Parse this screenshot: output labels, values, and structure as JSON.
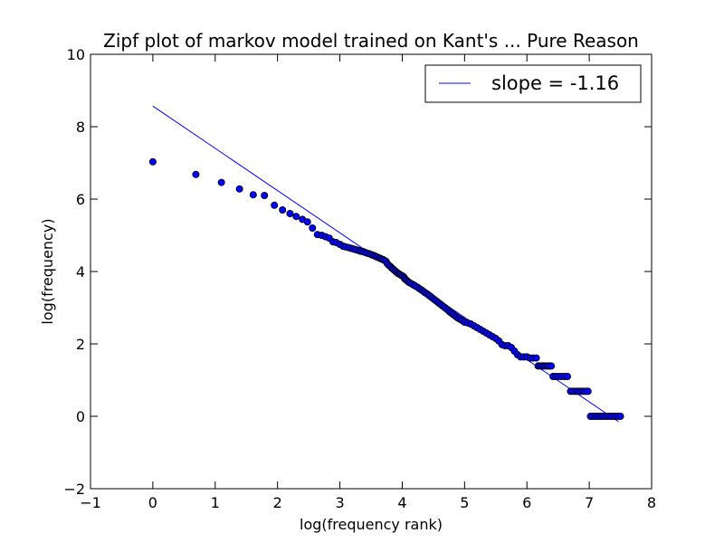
{
  "chart_data": {
    "type": "scatter",
    "title": "Zipf plot of markov model trained on Kant's ... Pure Reason",
    "xlabel": "log(frequency rank)",
    "ylabel": "log(frequency)",
    "xlim": [
      -1,
      8
    ],
    "ylim": [
      -2,
      10
    ],
    "xticks": [
      -1,
      0,
      1,
      2,
      3,
      4,
      5,
      6,
      7,
      8
    ],
    "yticks": [
      -2,
      0,
      2,
      4,
      6,
      8,
      10
    ],
    "xtick_labels": [
      "−1",
      "0",
      "1",
      "2",
      "3",
      "4",
      "5",
      "6",
      "7",
      "8"
    ],
    "ytick_labels": [
      "−2",
      "0",
      "2",
      "4",
      "6",
      "8",
      "10"
    ],
    "grid": false,
    "legend_position": "top-right",
    "series": [
      {
        "name": "slope = -1.16",
        "type": "line",
        "color": "#0000ff",
        "x": [
          0,
          7.47
        ],
        "y": [
          8.57,
          -0.15
        ]
      },
      {
        "type": "scatter",
        "color": "#0000ff",
        "x": [
          0.0,
          0.69,
          1.1,
          1.39,
          1.61,
          1.79,
          1.95,
          2.08,
          2.2,
          2.3,
          2.4,
          2.48,
          2.56,
          2.64,
          2.71,
          2.77,
          2.83,
          2.89,
          2.94,
          3.0,
          3.05,
          3.09,
          3.14,
          3.18,
          3.22,
          3.26,
          3.3,
          3.33,
          3.37,
          3.4,
          3.43,
          3.47,
          3.5,
          3.53,
          3.56,
          3.58,
          3.61,
          3.64,
          3.66,
          3.69,
          3.71,
          3.74,
          3.76,
          3.78,
          3.81,
          3.83,
          3.85,
          3.87,
          3.89,
          3.91,
          3.93,
          3.95,
          3.97,
          3.99,
          4.01,
          4.03,
          4.04,
          4.06,
          4.08,
          4.1,
          4.12,
          4.15,
          4.18,
          4.21,
          4.25,
          4.28,
          4.31,
          4.34,
          4.37,
          4.4,
          4.43,
          4.46,
          4.49,
          4.52,
          4.55,
          4.58,
          4.61,
          4.64,
          4.67,
          4.7,
          4.73,
          4.76,
          4.79,
          4.82,
          4.85,
          4.88,
          4.91,
          4.94,
          4.97,
          5.0,
          5.05,
          5.1,
          5.15,
          5.2,
          5.25,
          5.3,
          5.35,
          5.4,
          5.45,
          5.5,
          5.55,
          5.6,
          5.65,
          5.7,
          5.75,
          5.8,
          5.85,
          5.9,
          5.95,
          6.0,
          6.05,
          6.1,
          6.15,
          6.18,
          6.21,
          6.24,
          6.27,
          6.3,
          6.33,
          6.36,
          6.39,
          6.42,
          6.46,
          6.5,
          6.55,
          6.6,
          6.65,
          6.7,
          6.74,
          6.78,
          6.82,
          6.86,
          6.9,
          6.94,
          6.98,
          7.02,
          7.06,
          7.1,
          7.14,
          7.18,
          7.22,
          7.26,
          7.3,
          7.34,
          7.38,
          7.42,
          7.46,
          7.5
        ],
        "y": [
          7.03,
          6.68,
          6.46,
          6.28,
          6.12,
          6.1,
          5.83,
          5.7,
          5.6,
          5.52,
          5.44,
          5.37,
          5.2,
          5.02,
          5.0,
          4.96,
          4.92,
          4.82,
          4.8,
          4.75,
          4.7,
          4.68,
          4.66,
          4.64,
          4.62,
          4.6,
          4.58,
          4.56,
          4.55,
          4.53,
          4.51,
          4.49,
          4.47,
          4.45,
          4.43,
          4.41,
          4.39,
          4.37,
          4.35,
          4.33,
          4.31,
          4.28,
          4.22,
          4.18,
          4.14,
          4.1,
          4.07,
          4.04,
          4.01,
          3.98,
          3.95,
          3.93,
          3.91,
          3.89,
          3.87,
          3.84,
          3.8,
          3.77,
          3.74,
          3.71,
          3.69,
          3.66,
          3.63,
          3.6,
          3.56,
          3.52,
          3.49,
          3.45,
          3.41,
          3.38,
          3.34,
          3.3,
          3.26,
          3.22,
          3.18,
          3.14,
          3.1,
          3.06,
          3.02,
          2.98,
          2.94,
          2.89,
          2.85,
          2.81,
          2.77,
          2.73,
          2.7,
          2.67,
          2.64,
          2.6,
          2.58,
          2.55,
          2.5,
          2.45,
          2.4,
          2.35,
          2.3,
          2.25,
          2.2,
          2.15,
          2.08,
          1.98,
          1.95,
          1.95,
          1.9,
          1.8,
          1.7,
          1.64,
          1.64,
          1.64,
          1.61,
          1.61,
          1.61,
          1.39,
          1.39,
          1.39,
          1.39,
          1.39,
          1.39,
          1.39,
          1.39,
          1.1,
          1.1,
          1.1,
          1.1,
          1.1,
          1.1,
          0.69,
          0.69,
          0.69,
          0.69,
          0.69,
          0.69,
          0.69,
          0.69,
          0.0,
          0.0,
          0.0,
          0.0,
          0.0,
          0.0,
          0.0,
          0.0,
          0.0,
          0.0,
          0.0,
          0.0,
          0.0
        ]
      }
    ]
  }
}
